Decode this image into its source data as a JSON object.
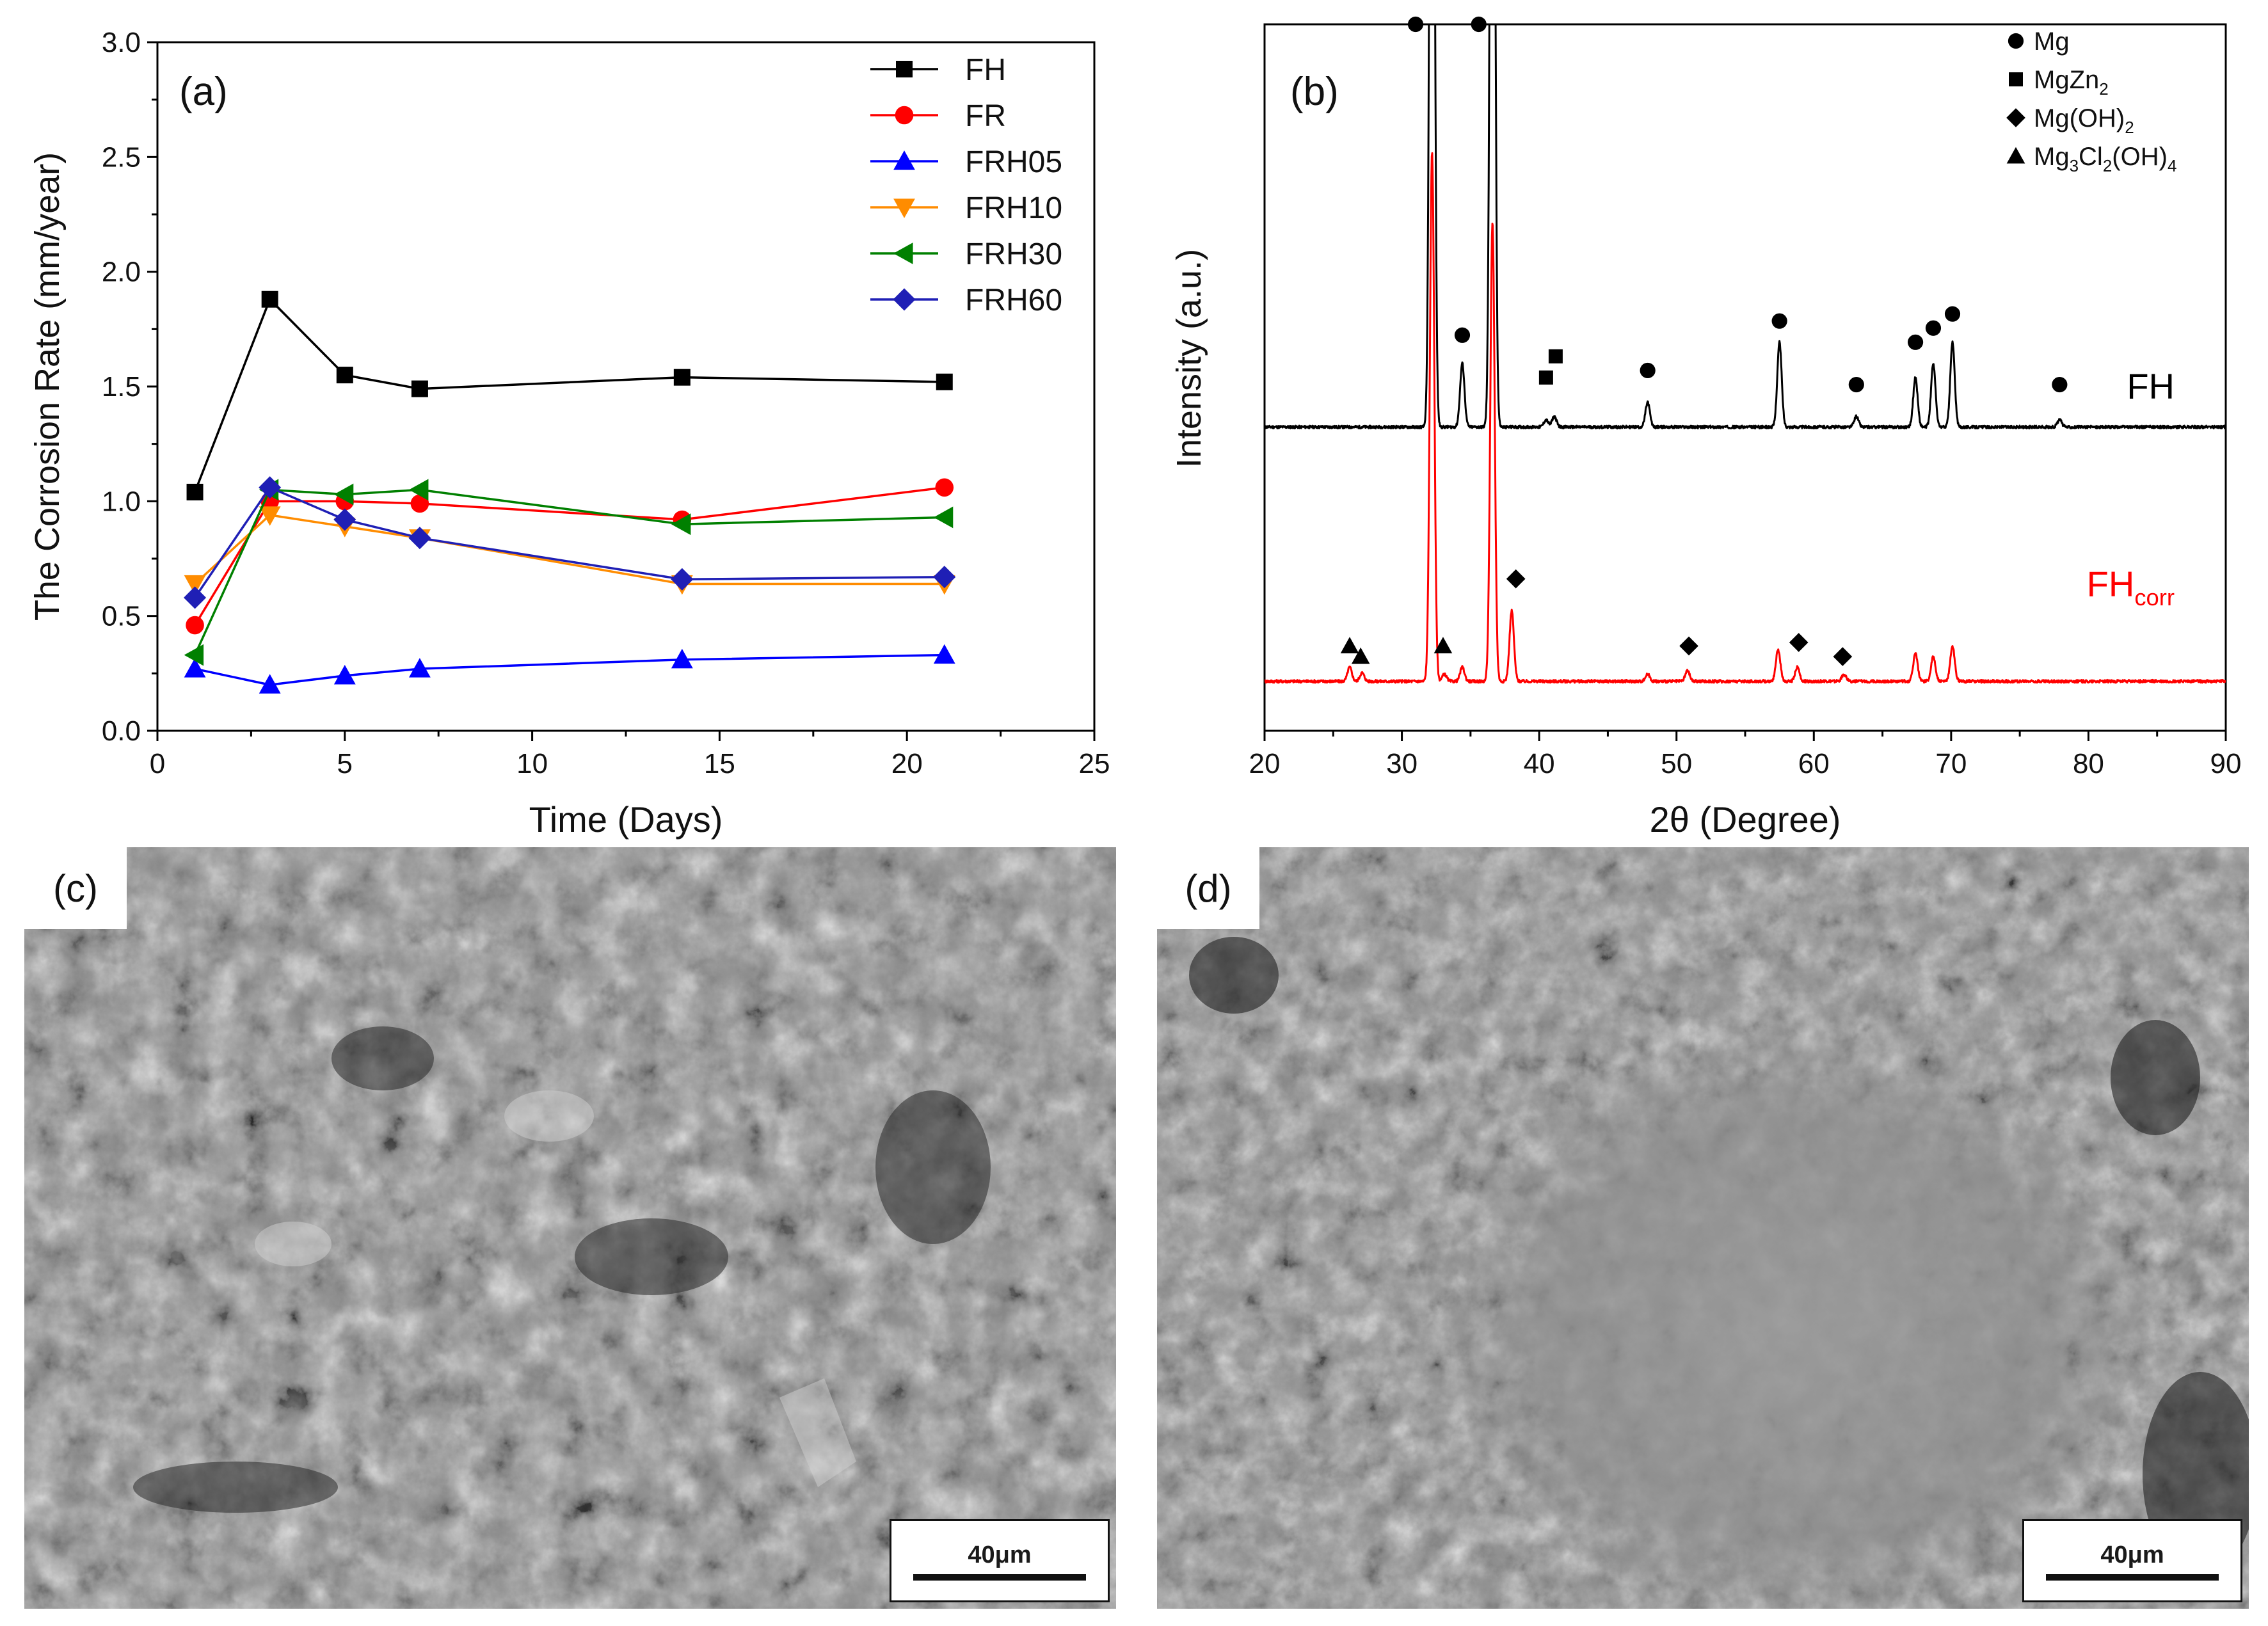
{
  "panels": {
    "a": {
      "label": "(a)",
      "chart_data": {
        "type": "line",
        "xlabel": "Time (Days)",
        "ylabel": "The Corrosion Rate (mm/year)",
        "xlim": [
          0,
          25
        ],
        "ylim": [
          0.0,
          3.0
        ],
        "x_ticks": [
          "0",
          "5",
          "10",
          "15",
          "20",
          "25"
        ],
        "y_ticks": [
          "0.0",
          "0.5",
          "1.0",
          "1.5",
          "2.0",
          "2.5",
          "3.0"
        ],
        "grid": false,
        "legend_position": "top-right",
        "x": [
          1,
          3,
          5,
          7,
          14,
          21
        ],
        "series": [
          {
            "name": "FH",
            "color": "#000000",
            "marker": "square",
            "values": [
              1.04,
              1.88,
              1.55,
              1.49,
              1.54,
              1.52
            ]
          },
          {
            "name": "FR",
            "color": "#ff0000",
            "marker": "circle",
            "values": [
              0.46,
              1.0,
              1.0,
              0.99,
              0.92,
              1.06
            ]
          },
          {
            "name": "FRH05",
            "color": "#0000ff",
            "marker": "triangle-up",
            "values": [
              0.27,
              0.2,
              0.24,
              0.27,
              0.31,
              0.33
            ]
          },
          {
            "name": "FRH10",
            "color": "#ff8c00",
            "marker": "triangle-down",
            "values": [
              0.64,
              0.94,
              0.89,
              0.84,
              0.64,
              0.64
            ]
          },
          {
            "name": "FRH30",
            "color": "#008000",
            "marker": "triangle-left",
            "values": [
              0.33,
              1.05,
              1.03,
              1.05,
              0.9,
              0.93
            ]
          },
          {
            "name": "FRH60",
            "color": "#1f1fb5",
            "marker": "diamond",
            "values": [
              0.58,
              1.06,
              0.92,
              0.84,
              0.66,
              0.67
            ]
          }
        ]
      }
    },
    "b": {
      "label": "(b)",
      "chart_data": {
        "type": "line",
        "xlabel": "2θ (Degree)",
        "ylabel": "Intensity (a.u.)",
        "xlim": [
          20,
          90
        ],
        "x_ticks": [
          "20",
          "30",
          "40",
          "50",
          "60",
          "70",
          "80",
          "90"
        ],
        "y_ticks": [],
        "grid": false,
        "legend_position": "top-right",
        "legend": [
          {
            "marker": "circle",
            "parts": [
              {
                "t": "Mg",
                "sub": false
              }
            ]
          },
          {
            "marker": "square",
            "parts": [
              {
                "t": "MgZn",
                "sub": false
              },
              {
                "t": "2",
                "sub": true
              }
            ]
          },
          {
            "marker": "diamond",
            "parts": [
              {
                "t": "Mg(OH)",
                "sub": false
              },
              {
                "t": "2",
                "sub": true
              }
            ]
          },
          {
            "marker": "triangle-up",
            "parts": [
              {
                "t": "Mg",
                "sub": false
              },
              {
                "t": "3",
                "sub": true
              },
              {
                "t": "Cl",
                "sub": false
              },
              {
                "t": "2",
                "sub": true
              },
              {
                "t": "(OH)",
                "sub": false
              },
              {
                "t": "4",
                "sub": true
              }
            ]
          }
        ],
        "series": [
          {
            "name": "FH",
            "label_parts": [
              {
                "t": "FH",
                "sub": false
              }
            ],
            "color": "#000000",
            "baseline": 0.43,
            "peaks": [
              {
                "x": 32.2,
                "h": 1.6
              },
              {
                "x": 34.4,
                "h": 0.09
              },
              {
                "x": 36.6,
                "h": 1.6
              },
              {
                "x": 40.5,
                "h": 0.01
              },
              {
                "x": 41.1,
                "h": 0.015
              },
              {
                "x": 47.9,
                "h": 0.035
              },
              {
                "x": 57.5,
                "h": 0.12
              },
              {
                "x": 63.1,
                "h": 0.015
              },
              {
                "x": 67.4,
                "h": 0.07
              },
              {
                "x": 68.7,
                "h": 0.09
              },
              {
                "x": 70.1,
                "h": 0.12
              },
              {
                "x": 77.9,
                "h": 0.01
              }
            ],
            "markers": [
              {
                "x": 31.0,
                "y": 1.0,
                "marker": "circle"
              },
              {
                "x": 35.6,
                "y": 1.0,
                "marker": "circle"
              },
              {
                "x": 34.4,
                "y": 0.56,
                "marker": "circle"
              },
              {
                "x": 40.5,
                "y": 0.5,
                "marker": "square"
              },
              {
                "x": 41.2,
                "y": 0.53,
                "marker": "square"
              },
              {
                "x": 47.9,
                "y": 0.51,
                "marker": "circle"
              },
              {
                "x": 57.5,
                "y": 0.58,
                "marker": "circle"
              },
              {
                "x": 63.1,
                "y": 0.49,
                "marker": "circle"
              },
              {
                "x": 67.4,
                "y": 0.55,
                "marker": "circle"
              },
              {
                "x": 68.7,
                "y": 0.57,
                "marker": "circle"
              },
              {
                "x": 70.1,
                "y": 0.59,
                "marker": "circle"
              },
              {
                "x": 77.9,
                "y": 0.49,
                "marker": "circle"
              }
            ]
          },
          {
            "name": "FHcorr",
            "label_parts": [
              {
                "t": "FH",
                "sub": false
              },
              {
                "t": "corr",
                "sub": true
              }
            ],
            "color": "#ff0000",
            "baseline": 0.07,
            "peaks": [
              {
                "x": 26.2,
                "h": 0.02
              },
              {
                "x": 27.1,
                "h": 0.012
              },
              {
                "x": 32.2,
                "h": 0.75
              },
              {
                "x": 33.1,
                "h": 0.01
              },
              {
                "x": 34.4,
                "h": 0.02
              },
              {
                "x": 36.6,
                "h": 0.65
              },
              {
                "x": 38.0,
                "h": 0.1
              },
              {
                "x": 47.9,
                "h": 0.01
              },
              {
                "x": 50.8,
                "h": 0.015
              },
              {
                "x": 57.4,
                "h": 0.045
              },
              {
                "x": 58.8,
                "h": 0.02
              },
              {
                "x": 62.2,
                "h": 0.01
              },
              {
                "x": 67.4,
                "h": 0.04
              },
              {
                "x": 68.7,
                "h": 0.035
              },
              {
                "x": 70.1,
                "h": 0.05
              }
            ],
            "markers": [
              {
                "x": 26.2,
                "y": 0.12,
                "marker": "triangle-up"
              },
              {
                "x": 27.0,
                "y": 0.105,
                "marker": "triangle-up"
              },
              {
                "x": 33.0,
                "y": 0.12,
                "marker": "triangle-up"
              },
              {
                "x": 38.3,
                "y": 0.215,
                "marker": "diamond"
              },
              {
                "x": 50.9,
                "y": 0.12,
                "marker": "diamond"
              },
              {
                "x": 58.9,
                "y": 0.125,
                "marker": "diamond"
              },
              {
                "x": 62.1,
                "y": 0.105,
                "marker": "diamond"
              }
            ]
          }
        ]
      }
    },
    "c": {
      "label": "(c)",
      "scale_bar": "40μm"
    },
    "d": {
      "label": "(d)",
      "scale_bar": "40μm"
    }
  }
}
